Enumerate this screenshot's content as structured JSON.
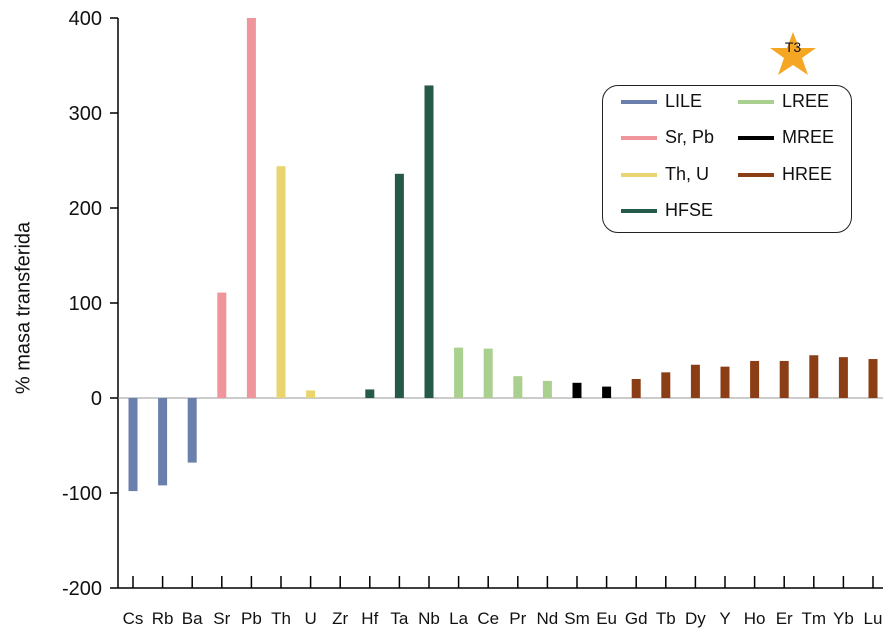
{
  "chart_data": {
    "type": "bar",
    "ylabel": "% masa transferida",
    "xlabel": "",
    "title": "",
    "ylim": [
      -200,
      400
    ],
    "yticks": [
      -200,
      -100,
      0,
      100,
      200,
      300,
      400
    ],
    "ytick_labels": [
      "-200",
      "-100",
      "0",
      "100",
      "200",
      "300",
      "400"
    ],
    "categories": [
      "Cs",
      "Rb",
      "Ba",
      "Sr",
      "Pb",
      "Th",
      "U",
      "Zr",
      "Hf",
      "Ta",
      "Nb",
      "La",
      "Ce",
      "Pr",
      "Nd",
      "Sm",
      "Eu",
      "Gd",
      "Tb",
      "Dy",
      "Y",
      "Ho",
      "Er",
      "Tm",
      "Yb",
      "Lu"
    ],
    "values": [
      -98,
      -92,
      -68,
      111,
      400,
      244,
      8,
      0,
      9,
      236,
      329,
      53,
      52,
      23,
      18,
      16,
      12,
      20,
      27,
      35,
      33,
      39,
      39,
      45,
      43,
      41
    ],
    "groups": [
      "LILE",
      "LILE",
      "LILE",
      "Sr, Pb",
      "Sr, Pb",
      "Th, U",
      "Th, U",
      "HFSE",
      "HFSE",
      "HFSE",
      "HFSE",
      "LREE",
      "LREE",
      "LREE",
      "LREE",
      "MREE",
      "MREE",
      "HREE",
      "HREE",
      "HREE",
      "HREE",
      "HREE",
      "HREE",
      "HREE",
      "HREE",
      "HREE"
    ],
    "legend": {
      "placement": "top-right",
      "entries": [
        {
          "name": "LILE",
          "color": "#6a7fab"
        },
        {
          "name": "LREE",
          "color": "#a9d08e"
        },
        {
          "name": "Sr, Pb",
          "color": "#f0959b"
        },
        {
          "name": "MREE",
          "color": "#000000"
        },
        {
          "name": "Th, U",
          "color": "#e8d56f"
        },
        {
          "name": "HREE",
          "color": "#8b3e16"
        },
        {
          "name": "HFSE",
          "color": "#255a4a"
        }
      ]
    },
    "badge": "T3",
    "badge_color": "#f5a623",
    "grid": false
  }
}
